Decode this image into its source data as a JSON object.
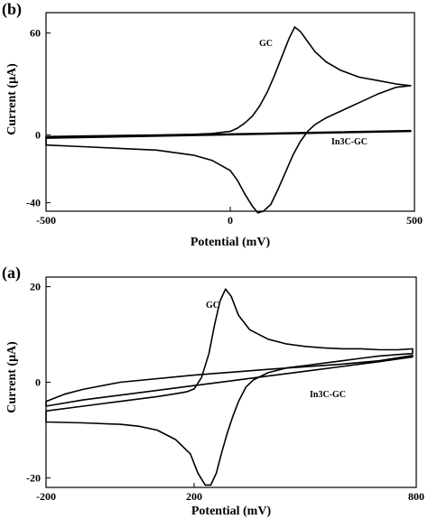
{
  "chart_data": [
    {
      "type": "line",
      "panel_label": "(b)",
      "xlabel": "Potential (mV)",
      "ylabel": "Current (μA)",
      "xlim": [
        -500,
        500
      ],
      "ylim": [
        -45,
        72
      ],
      "x_ticks": [
        -500,
        0,
        500
      ],
      "x_tick_labels": [
        "-500",
        "0",
        "500"
      ],
      "y_ticks": [
        60,
        0,
        -40
      ],
      "y_tick_labels": [
        "60",
        "0",
        "-40"
      ],
      "annotations": [
        "GC",
        "In3C-GC"
      ],
      "series": [
        {
          "name": "GC",
          "x": [
            -500,
            -400,
            -300,
            -200,
            -100,
            -50,
            0,
            20,
            40,
            60,
            80,
            100,
            120,
            140,
            160,
            175,
            190,
            210,
            230,
            260,
            300,
            350,
            400,
            450,
            490,
            490,
            450,
            400,
            350,
            300,
            260,
            230,
            210,
            190,
            170,
            150,
            130,
            110,
            90,
            75,
            60,
            40,
            20,
            0,
            -50,
            -100,
            -200,
            -300,
            -400,
            -500
          ],
          "y": [
            -1,
            -0.7,
            -0.4,
            -0.1,
            0.3,
            0.8,
            2,
            4,
            7,
            11,
            17,
            25,
            35,
            46,
            57,
            63.5,
            61,
            55,
            49,
            43,
            38,
            34,
            32,
            30,
            29,
            29,
            28,
            24,
            19,
            14,
            10,
            6,
            2,
            -4,
            -12,
            -22,
            -32,
            -41,
            -45,
            -46,
            -42,
            -35,
            -27,
            -21,
            -15,
            -12,
            -9,
            -8,
            -7,
            -6
          ]
        },
        {
          "name": "In3C-GC",
          "x": [
            -500,
            490,
            490,
            -500
          ],
          "y": [
            -2,
            2,
            2.5,
            -1.5
          ]
        }
      ]
    },
    {
      "type": "line",
      "panel_label": "(a)",
      "xlabel": "Potential (mV)",
      "ylabel": "Current (μA)",
      "xlim": [
        -200,
        800
      ],
      "ylim": [
        -22,
        22
      ],
      "x_ticks": [
        -200,
        200,
        800
      ],
      "x_tick_labels": [
        "-200",
        "200",
        "800"
      ],
      "y_ticks": [
        20,
        0,
        -20
      ],
      "y_tick_labels": [
        "20",
        "0",
        "-20"
      ],
      "annotations": [
        "GC",
        "In3C-GC"
      ],
      "series": [
        {
          "name": "GC",
          "x": [
            -200,
            -100,
            0,
            100,
            150,
            180,
            200,
            220,
            240,
            255,
            270,
            285,
            300,
            320,
            350,
            400,
            450,
            500,
            550,
            600,
            650,
            700,
            750,
            790,
            790,
            750,
            700,
            650,
            600,
            550,
            500,
            450,
            400,
            360,
            340,
            320,
            305,
            290,
            275,
            260,
            245,
            230,
            210,
            190,
            150,
            100,
            50,
            0,
            -100,
            -200
          ],
          "y": [
            -6,
            -5,
            -4,
            -3,
            -2.4,
            -2,
            -1.4,
            1,
            6,
            12,
            17,
            19.5,
            18,
            14,
            11,
            9,
            8,
            7.5,
            7.2,
            7,
            7,
            6.8,
            6.8,
            7,
            6,
            5.8,
            5.5,
            5,
            4.5,
            4,
            3.5,
            3,
            2,
            0.5,
            -1,
            -4,
            -7,
            -10.5,
            -14.5,
            -19,
            -21.5,
            -21.5,
            -19,
            -15,
            -12,
            -10,
            -9.2,
            -8.8,
            -8.5,
            -8.3
          ]
        },
        {
          "name": "In3C-GC",
          "x": [
            -200,
            -150,
            -100,
            0,
            200,
            400,
            600,
            700,
            790,
            790,
            700,
            600,
            500,
            400,
            300,
            200,
            0,
            -100,
            -200
          ],
          "y": [
            -4,
            -2.5,
            -1.5,
            0,
            1.5,
            2.7,
            3.8,
            4.5,
            5.6,
            5.3,
            4.3,
            3.3,
            2.3,
            1.3,
            0.3,
            -0.7,
            -2.7,
            -3.7,
            -5
          ]
        }
      ]
    }
  ]
}
